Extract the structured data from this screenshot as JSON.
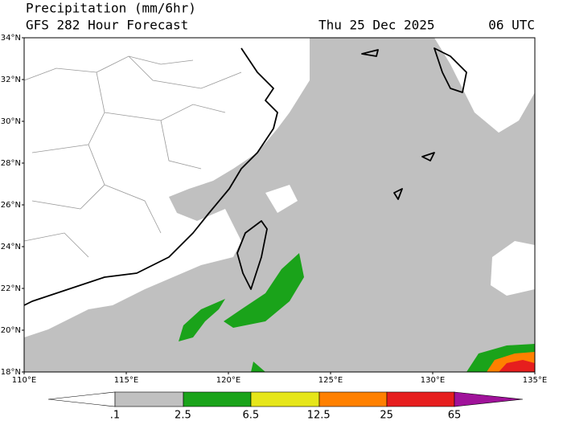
{
  "header": {
    "title": "Precipitation (mm/6hr)",
    "subtitle": "GFS 282 Hour Forecast",
    "date": "Thu 25 Dec 2025",
    "time": "06 UTC"
  },
  "axes": {
    "lat_labels": [
      "18°N",
      "20°N",
      "22°N",
      "24°N",
      "26°N",
      "28°N",
      "30°N",
      "32°N",
      "34°N"
    ],
    "lon_labels": [
      "110°E",
      "115°E",
      "120°E",
      "125°E",
      "130°E",
      "135°E"
    ]
  },
  "colorbar": {
    "labels": [
      ".1",
      "2.5",
      "6.5",
      "12.5",
      "25",
      "65"
    ]
  }
}
